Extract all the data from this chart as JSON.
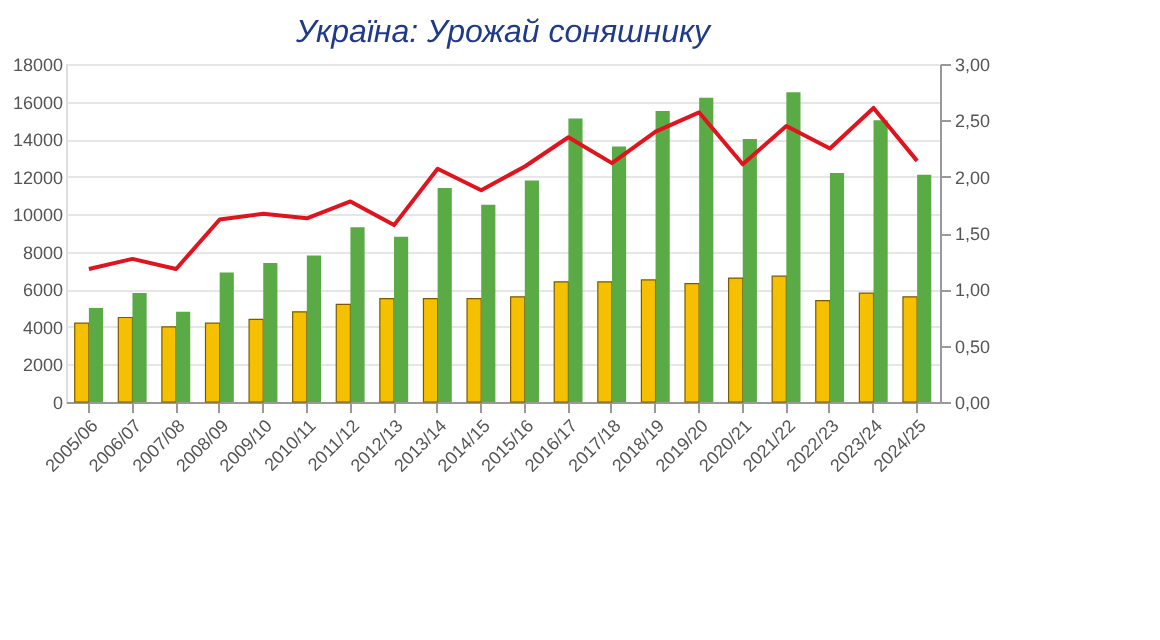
{
  "chart_data": {
    "type": "bar",
    "title": "Україна: Урожай соняшнику",
    "categories": [
      "2005/06",
      "2006/07",
      "2007/08",
      "2008/09",
      "2009/10",
      "2010/11",
      "2011/12",
      "2012/13",
      "2013/14",
      "2014/15",
      "2015/16",
      "2016/17",
      "2017/18",
      "2018/19",
      "2019/20",
      "2020/21",
      "2021/22",
      "2022/23",
      "2023/24",
      "2024/25"
    ],
    "series": [
      {
        "color": "#f5c000",
        "values": [
          4200,
          4500,
          4000,
          4200,
          4400,
          4800,
          5200,
          5500,
          5500,
          5500,
          5600,
          6400,
          6400,
          6500,
          6300,
          6600,
          6700,
          5400,
          5800,
          5600
        ]
      },
      {
        "color": "#5aaa46",
        "values": [
          5000,
          5800,
          4800,
          6900,
          7400,
          7800,
          9300,
          8800,
          11400,
          10500,
          11800,
          15100,
          13600,
          15500,
          16200,
          14000,
          16500,
          12200,
          15000,
          12100
        ]
      },
      {
        "type": "line",
        "axis": "y2",
        "color": "#e0141e",
        "values": [
          1.18,
          1.27,
          1.18,
          1.62,
          1.67,
          1.63,
          1.78,
          1.57,
          2.07,
          1.88,
          2.09,
          2.35,
          2.12,
          2.4,
          2.57,
          2.11,
          2.45,
          2.25,
          2.61,
          2.14
        ]
      }
    ],
    "ylim": [
      0,
      18000
    ],
    "yticks": [
      0,
      2000,
      4000,
      6000,
      8000,
      10000,
      12000,
      14000,
      16000,
      18000
    ],
    "y2lim": [
      0,
      3
    ],
    "y2ticks": [
      {
        "value": 0,
        "label": "0,00"
      },
      {
        "value": 0.5,
        "label": "0,50"
      },
      {
        "value": 1,
        "label": "1,00"
      },
      {
        "value": 1.5,
        "label": "1,50"
      },
      {
        "value": 2,
        "label": "2,00"
      },
      {
        "value": 2.5,
        "label": "2,50"
      },
      {
        "value": 3,
        "label": "3,00"
      }
    ],
    "grid": "y",
    "legend": false,
    "line_style": "solid",
    "marker": "none"
  }
}
